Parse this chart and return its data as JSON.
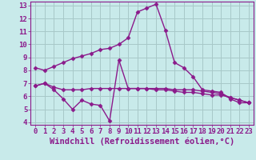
{
  "line1_x": [
    0,
    1,
    2,
    3,
    4,
    5,
    6,
    7,
    8,
    9,
    10,
    11,
    12,
    13,
    14,
    15,
    16,
    17,
    18,
    19,
    20,
    21,
    22,
    23
  ],
  "line1_y": [
    8.2,
    8.0,
    8.3,
    8.6,
    8.9,
    9.1,
    9.3,
    9.6,
    9.7,
    10.0,
    10.5,
    12.5,
    12.8,
    13.1,
    11.1,
    8.6,
    8.2,
    7.5,
    6.5,
    6.4,
    6.3,
    5.8,
    5.5,
    5.5
  ],
  "line2_x": [
    0,
    1,
    2,
    3,
    4,
    5,
    6,
    7,
    8,
    9,
    10,
    11,
    12,
    13,
    14,
    15,
    16,
    17,
    18,
    19,
    20,
    21,
    22,
    23
  ],
  "line2_y": [
    6.8,
    7.0,
    6.7,
    6.5,
    6.5,
    6.5,
    6.6,
    6.6,
    6.6,
    6.6,
    6.6,
    6.6,
    6.6,
    6.6,
    6.6,
    6.5,
    6.5,
    6.5,
    6.4,
    6.3,
    6.2,
    5.9,
    5.7,
    5.5
  ],
  "line3_x": [
    0,
    1,
    2,
    3,
    4,
    5,
    6,
    7,
    8,
    9,
    10,
    11,
    12,
    13,
    14,
    15,
    16,
    17,
    18,
    19,
    20,
    21,
    22,
    23
  ],
  "line3_y": [
    6.8,
    7.0,
    6.5,
    5.8,
    5.0,
    5.7,
    5.4,
    5.3,
    4.1,
    8.8,
    6.6,
    6.6,
    6.6,
    6.5,
    6.5,
    6.4,
    6.3,
    6.3,
    6.2,
    6.1,
    6.1,
    5.9,
    5.7,
    5.5
  ],
  "line_color": "#8b1a8b",
  "bg_color": "#c8eaea",
  "grid_color": "#a8c8c8",
  "xlabel": "Windchill (Refroidissement éolien,°C)",
  "xlim": [
    -0.5,
    23.5
  ],
  "ylim": [
    3.8,
    13.3
  ],
  "xticks": [
    0,
    1,
    2,
    3,
    4,
    5,
    6,
    7,
    8,
    9,
    10,
    11,
    12,
    13,
    14,
    15,
    16,
    17,
    18,
    19,
    20,
    21,
    22,
    23
  ],
  "yticks": [
    4,
    5,
    6,
    7,
    8,
    9,
    10,
    11,
    12,
    13
  ],
  "marker": "D",
  "markersize": 2.5,
  "linewidth": 1.0,
  "xlabel_fontsize": 7.5,
  "tick_fontsize": 6.5
}
